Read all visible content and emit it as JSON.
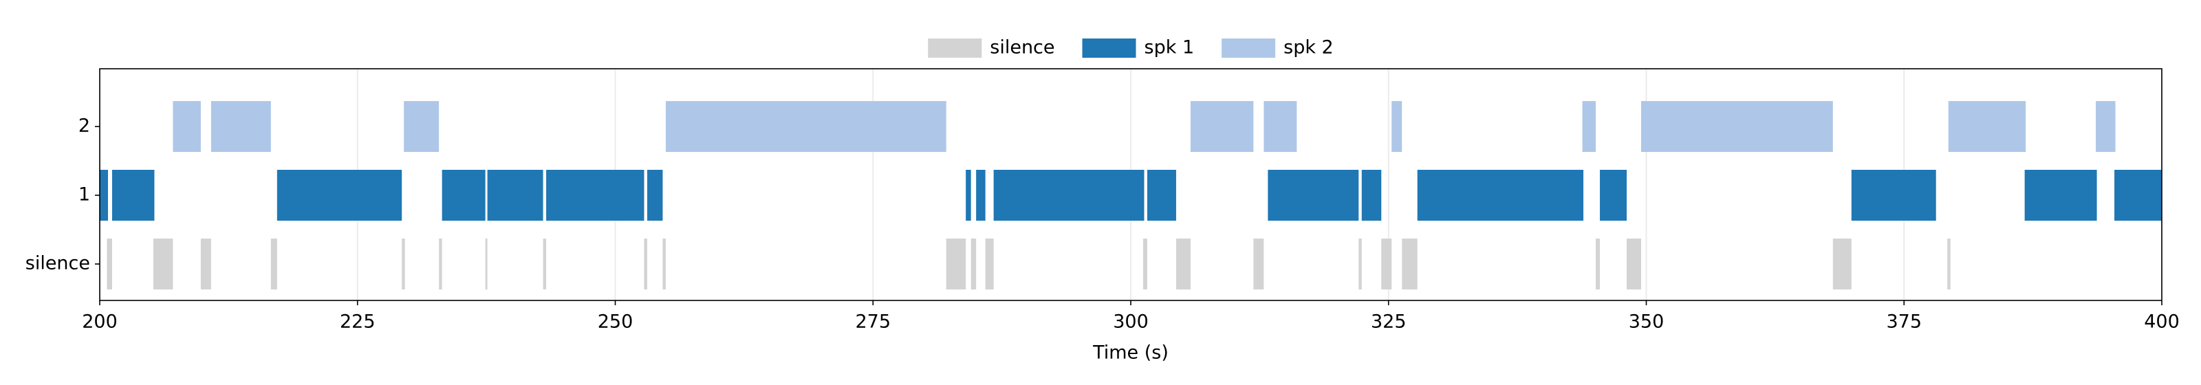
{
  "chart_data": {
    "type": "timeline",
    "xlabel": "Time (s)",
    "xlim": [
      200,
      400
    ],
    "xticks": [
      200,
      225,
      250,
      275,
      300,
      325,
      350,
      375,
      400
    ],
    "rows": [
      "silence",
      "1",
      "2"
    ],
    "grid": true,
    "legend": "top",
    "series": [
      {
        "name": "silence",
        "color": "#d3d3d3",
        "segments": [
          [
            200.7,
            201.2
          ],
          [
            205.2,
            207.1
          ],
          [
            209.8,
            210.8
          ],
          [
            216.6,
            217.2
          ],
          [
            229.3,
            229.6
          ],
          [
            232.9,
            233.2
          ],
          [
            237.4,
            237.6
          ],
          [
            243.0,
            243.3
          ],
          [
            252.8,
            253.1
          ],
          [
            254.6,
            254.9
          ],
          [
            282.1,
            284.0
          ],
          [
            284.5,
            285.0
          ],
          [
            285.9,
            286.7
          ],
          [
            301.2,
            301.6
          ],
          [
            304.4,
            305.8
          ],
          [
            311.9,
            312.9
          ],
          [
            322.1,
            322.4
          ],
          [
            324.3,
            325.3
          ],
          [
            326.3,
            327.8
          ],
          [
            345.1,
            345.5
          ],
          [
            348.1,
            349.5
          ],
          [
            368.1,
            369.9
          ],
          [
            379.2,
            379.5
          ]
        ]
      },
      {
        "name": "spk 1",
        "color": "#1f77b4",
        "segments": [
          [
            200,
            200.8
          ],
          [
            201.2,
            205.3
          ],
          [
            217.2,
            229.3
          ],
          [
            233.2,
            237.4
          ],
          [
            237.6,
            243.0
          ],
          [
            243.3,
            252.8
          ],
          [
            253.1,
            254.6
          ],
          [
            284.0,
            284.5
          ],
          [
            285.0,
            285.9
          ],
          [
            286.7,
            301.3
          ],
          [
            301.6,
            304.4
          ],
          [
            313.3,
            322.1
          ],
          [
            322.4,
            324.3
          ],
          [
            327.8,
            343.9
          ],
          [
            345.5,
            348.1
          ],
          [
            369.9,
            378.1
          ],
          [
            386.7,
            393.7
          ],
          [
            395.4,
            400
          ]
        ]
      },
      {
        "name": "spk 2",
        "color": "#aec7e8",
        "segments": [
          [
            207.1,
            209.8
          ],
          [
            210.8,
            216.6
          ],
          [
            229.5,
            232.9
          ],
          [
            254.9,
            282.1
          ],
          [
            305.8,
            311.9
          ],
          [
            312.9,
            316.1
          ],
          [
            325.3,
            326.3
          ],
          [
            343.8,
            345.1
          ],
          [
            349.5,
            368.1
          ],
          [
            379.3,
            386.8
          ],
          [
            393.6,
            395.5
          ]
        ]
      }
    ]
  }
}
